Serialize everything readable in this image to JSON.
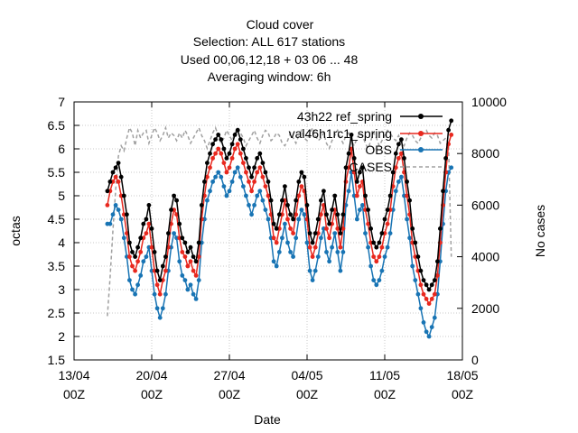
{
  "chart_data": {
    "type": "line",
    "title": [
      "Cloud cover",
      "Selection: ALL    617 stations",
      "Used  00,06,12,18  + 03 06 ... 48",
      "Averaging window:  6h"
    ],
    "xlabel": "Date",
    "ylabel": "octas",
    "y2label": "No cases",
    "xlim": [
      "2022-04-13 00:00",
      "2022-05-18 00:00"
    ],
    "ylim": [
      1.5,
      7
    ],
    "y2lim": [
      0,
      10000
    ],
    "x_ticks": [
      {
        "line1": "13/04",
        "line2": "00Z"
      },
      {
        "line1": "20/04",
        "line2": "00Z"
      },
      {
        "line1": "27/04",
        "line2": "00Z"
      },
      {
        "line1": "04/05",
        "line2": "00Z"
      },
      {
        "line1": "11/05",
        "line2": "00Z"
      },
      {
        "line1": "18/05",
        "line2": "00Z"
      }
    ],
    "y_ticks": [
      "1.5",
      "2",
      "2.5",
      "3",
      "3.5",
      "4",
      "4.5",
      "5",
      "5.5",
      "6",
      "6.5",
      "7"
    ],
    "y2_ticks": [
      "0",
      "2000",
      "4000",
      "6000",
      "8000",
      "10000"
    ],
    "grid": true,
    "legend_position": "top-right",
    "x_start": "2022-04-16 00:00",
    "x_step_hours": 6,
    "series": [
      {
        "name": "43h22 ref_spring",
        "color": "#000000",
        "axis": "y",
        "values": [
          5.1,
          5.3,
          5.5,
          5.6,
          5.7,
          5.4,
          5.0,
          4.6,
          4.0,
          3.8,
          3.7,
          3.9,
          4.1,
          4.4,
          4.5,
          4.8,
          4.3,
          3.8,
          3.4,
          3.2,
          3.5,
          3.7,
          4.2,
          4.7,
          5.0,
          4.9,
          4.4,
          4.1,
          4.0,
          3.8,
          3.9,
          3.7,
          3.6,
          4.0,
          4.8,
          5.3,
          5.7,
          5.9,
          6.1,
          6.2,
          6.3,
          6.2,
          6.0,
          5.8,
          5.9,
          6.1,
          6.3,
          6.4,
          6.2,
          6.0,
          5.8,
          5.6,
          5.4,
          5.6,
          5.8,
          5.9,
          5.7,
          5.5,
          5.3,
          4.9,
          4.4,
          4.3,
          4.6,
          4.9,
          5.2,
          4.8,
          4.6,
          4.5,
          4.9,
          5.3,
          5.5,
          5.4,
          4.8,
          4.2,
          4.0,
          4.2,
          4.5,
          4.9,
          5.1,
          4.6,
          4.4,
          4.7,
          5.0,
          4.6,
          4.2,
          4.6,
          5.6,
          5.9,
          6.3,
          5.8,
          5.3,
          5.5,
          5.6,
          5.0,
          4.7,
          4.3,
          4.0,
          3.9,
          4.0,
          4.2,
          4.5,
          4.7,
          5.0,
          5.5,
          5.9,
          6.1,
          6.2,
          5.8,
          5.3,
          4.9,
          4.3,
          4.0,
          3.7,
          3.4,
          3.2,
          3.1,
          3.0,
          3.1,
          3.2,
          3.6,
          4.3,
          5.1,
          5.8,
          6.4,
          6.6
        ]
      },
      {
        "name": "val46h1rc1_spring",
        "color": "#e8281e",
        "axis": "y",
        "values": [
          4.8,
          5.1,
          5.3,
          5.4,
          5.3,
          5.0,
          4.6,
          4.2,
          3.7,
          3.5,
          3.4,
          3.6,
          3.8,
          4.1,
          4.2,
          4.4,
          3.9,
          3.4,
          3.1,
          2.9,
          3.2,
          3.4,
          3.9,
          4.4,
          4.7,
          4.6,
          4.1,
          3.8,
          3.7,
          3.5,
          3.6,
          3.4,
          3.3,
          3.7,
          4.5,
          5.0,
          5.4,
          5.6,
          5.8,
          5.9,
          6.0,
          5.9,
          5.7,
          5.5,
          5.6,
          5.8,
          6.0,
          6.1,
          5.9,
          5.7,
          5.5,
          5.3,
          5.1,
          5.3,
          5.5,
          5.6,
          5.4,
          5.2,
          5.0,
          4.6,
          4.1,
          4.0,
          4.3,
          4.6,
          4.9,
          4.5,
          4.3,
          4.2,
          4.6,
          5.0,
          5.2,
          5.1,
          4.5,
          3.9,
          3.7,
          3.9,
          4.2,
          4.6,
          4.8,
          4.3,
          4.1,
          4.4,
          4.7,
          4.3,
          3.9,
          4.3,
          5.3,
          5.6,
          6.0,
          5.5,
          5.0,
          5.2,
          5.3,
          4.7,
          4.4,
          4.0,
          3.7,
          3.6,
          3.7,
          3.9,
          4.2,
          4.4,
          4.7,
          5.2,
          5.6,
          5.8,
          5.9,
          5.5,
          5.0,
          4.6,
          4.0,
          3.7,
          3.4,
          3.1,
          2.9,
          2.8,
          2.7,
          2.8,
          2.9,
          3.3,
          4.0,
          4.8,
          5.5,
          6.1,
          6.3
        ]
      },
      {
        "name": "OBS",
        "color": "#1874b4",
        "axis": "y",
        "values": [
          4.4,
          4.4,
          4.6,
          4.8,
          4.7,
          4.5,
          4.1,
          3.7,
          3.2,
          3.0,
          2.9,
          3.1,
          3.3,
          3.6,
          3.7,
          3.9,
          3.4,
          2.9,
          2.6,
          2.4,
          2.6,
          2.9,
          3.4,
          3.9,
          4.2,
          4.1,
          3.6,
          3.3,
          3.2,
          3.0,
          3.1,
          2.9,
          2.8,
          3.2,
          4.0,
          4.5,
          4.9,
          5.1,
          5.3,
          5.4,
          5.5,
          5.4,
          5.2,
          5.0,
          5.1,
          5.3,
          5.5,
          5.6,
          5.4,
          5.2,
          5.0,
          4.8,
          4.6,
          4.8,
          5.0,
          5.1,
          4.9,
          4.7,
          4.5,
          4.1,
          3.6,
          3.5,
          3.8,
          4.1,
          4.4,
          4.0,
          3.8,
          3.7,
          4.1,
          4.5,
          4.7,
          4.6,
          4.0,
          3.4,
          3.2,
          3.4,
          3.7,
          4.1,
          4.3,
          3.8,
          3.6,
          3.9,
          4.2,
          3.8,
          3.4,
          3.8,
          4.8,
          5.1,
          5.5,
          5.0,
          4.5,
          4.7,
          4.8,
          4.2,
          3.9,
          3.5,
          3.2,
          3.1,
          3.2,
          3.4,
          3.7,
          3.9,
          4.2,
          4.7,
          5.1,
          5.3,
          5.4,
          5.0,
          4.5,
          4.1,
          3.5,
          3.2,
          2.9,
          2.6,
          2.3,
          2.1,
          2.0,
          2.2,
          2.4,
          2.9,
          3.6,
          4.4,
          5.1,
          5.5,
          5.6
        ]
      },
      {
        "name": "CASES",
        "color": "#a0a0a0",
        "axis": "y2",
        "values": [
          1700,
          3200,
          5000,
          6600,
          7900,
          8300,
          8100,
          8600,
          9000,
          8800,
          8300,
          8900,
          8600,
          8800,
          8900,
          8400,
          8700,
          9000,
          8800,
          8500,
          8700,
          9000,
          8600,
          8800,
          8700,
          8500,
          8800,
          8600,
          8900,
          8700,
          8400,
          8600,
          8800,
          9000,
          8700,
          8500,
          8200,
          8500,
          8800,
          9000,
          8700,
          8400,
          8600,
          8900,
          8700,
          8500,
          8800,
          9000,
          8800,
          8600,
          8300,
          8500,
          8700,
          8900,
          8600,
          8400,
          8700,
          8900,
          8800,
          8500,
          8600,
          8800,
          8700,
          8400,
          8300,
          8500,
          8800,
          8600,
          8400,
          8700,
          8900,
          8600,
          8500,
          8800,
          9000,
          8700,
          8500,
          8600,
          8800,
          8400,
          8200,
          8500,
          8700,
          8900,
          8600,
          8400,
          8700,
          8800,
          8500,
          8300,
          8600,
          8800,
          8700,
          8400,
          8200,
          8500,
          8800,
          8600,
          8300,
          8500,
          8700,
          8900,
          8800,
          8600,
          8500,
          8700,
          8400,
          8300,
          8600,
          8800,
          8700,
          8500,
          8400,
          8600,
          8800,
          8900,
          8700,
          8600,
          8800,
          8700,
          8400,
          8500,
          8600,
          8400,
          4000
        ]
      }
    ]
  }
}
